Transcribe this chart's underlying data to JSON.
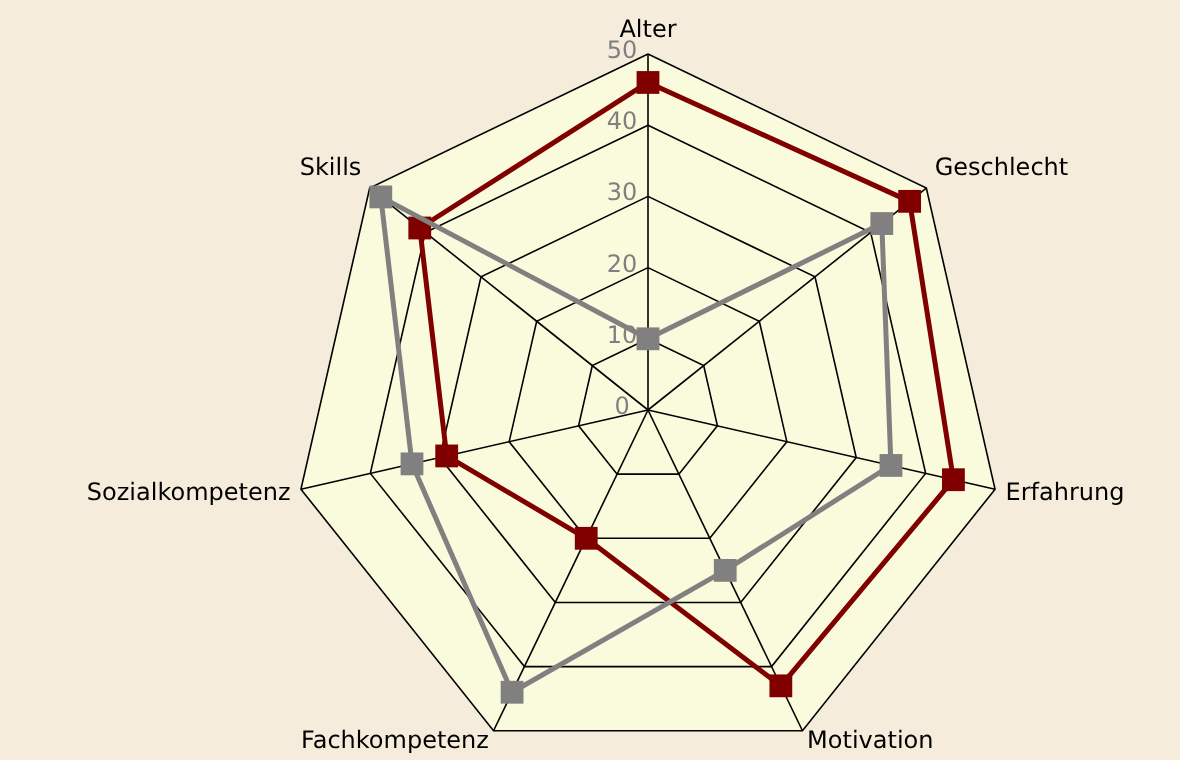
{
  "chart_data": {
    "type": "radar",
    "categories": [
      "Alter",
      "Geschlecht",
      "Erfahrung",
      "Motivation",
      "Fachkompetenz",
      "Sozialkompetenz",
      "Skills"
    ],
    "series": [
      {
        "color": "#800000",
        "values": [
          46,
          47,
          44,
          43,
          20,
          29,
          41
        ]
      },
      {
        "color": "#808080",
        "values": [
          10,
          42,
          35,
          25,
          44,
          34,
          48
        ]
      }
    ],
    "ylim": [
      0,
      50
    ],
    "yticks": [
      0,
      10,
      20,
      30,
      40,
      50
    ],
    "grid": true,
    "marker": "square"
  }
}
